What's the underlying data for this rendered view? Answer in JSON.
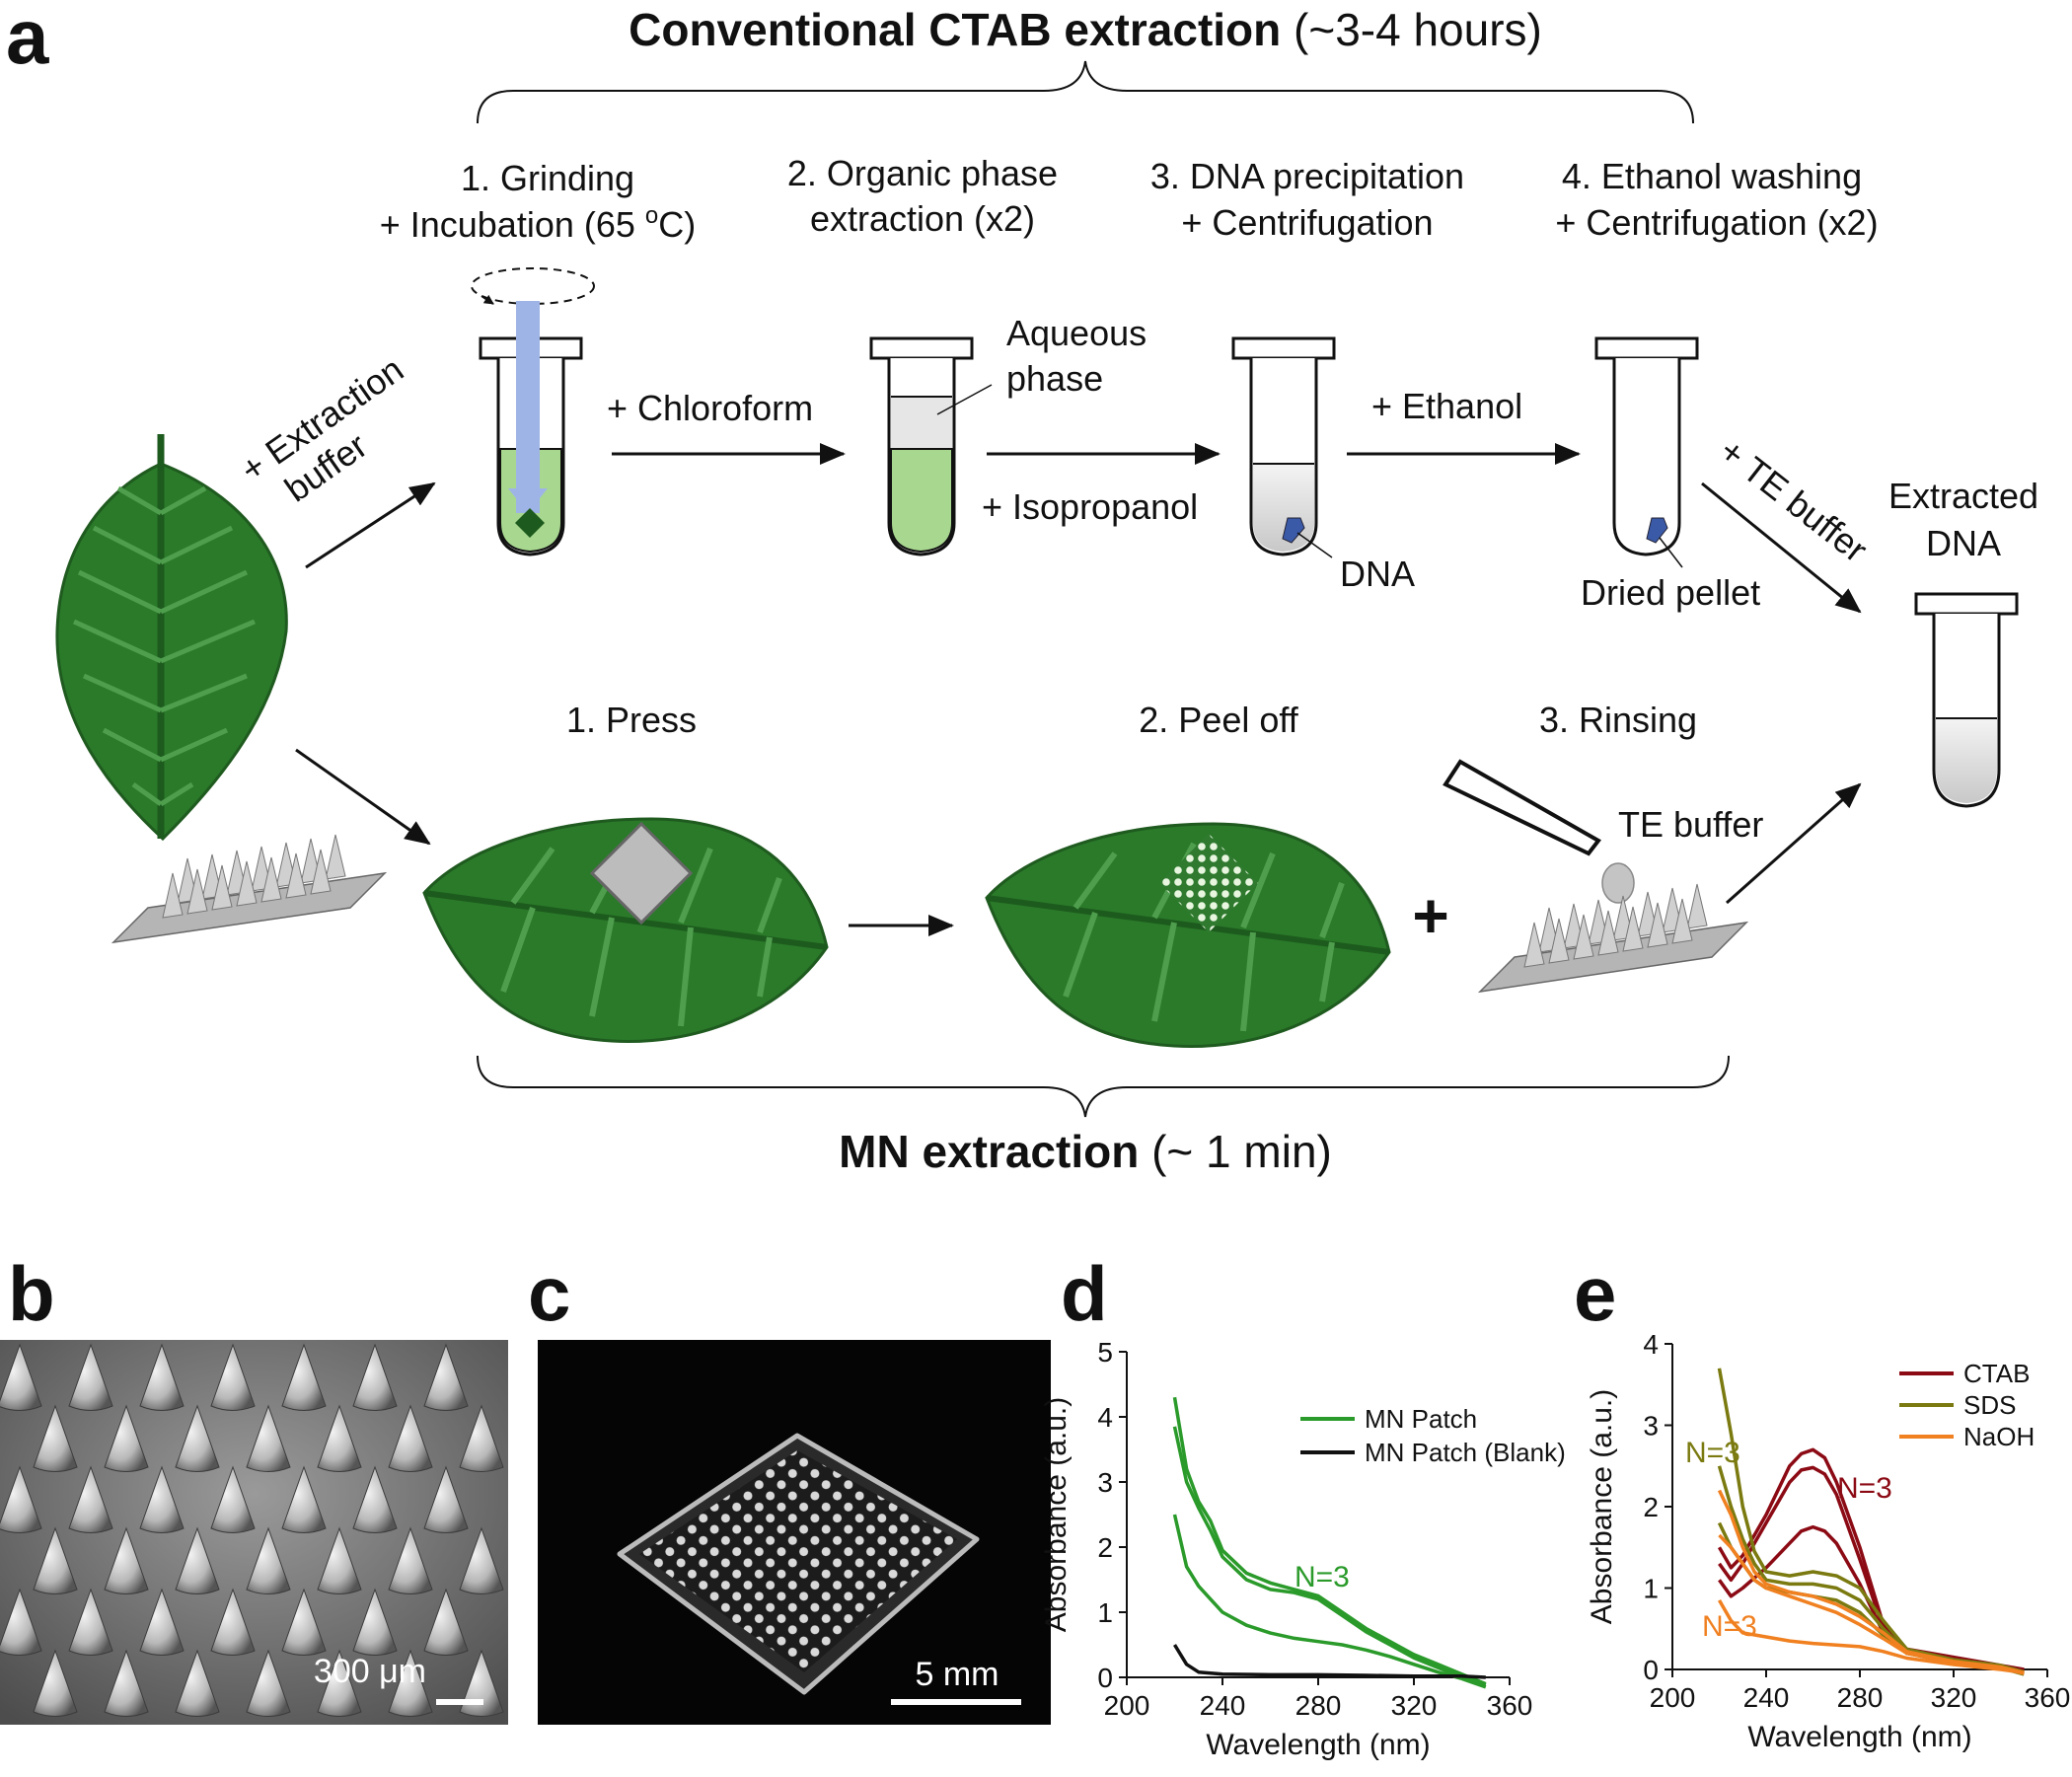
{
  "panels": {
    "a": "a",
    "b": "b",
    "c": "c",
    "d": "d",
    "e": "e"
  },
  "ctab": {
    "title_bold": "Conventional CTAB extraction",
    "title_rest": " (~3-4 hours)",
    "steps": [
      {
        "line1": "1. Grinding",
        "line2": "+ Incubation (65 ",
        "sup": "o",
        "line2_end": "C)"
      },
      {
        "line1": "2. Organic phase",
        "line2": "extraction (x2)"
      },
      {
        "line1": "3. DNA precipitation",
        "line2": "+ Centrifugation"
      },
      {
        "line1": "4. Ethanol washing",
        "line2": "+ Centrifugation (x2)"
      }
    ],
    "extraction_buffer": [
      "+ Extraction",
      "buffer"
    ],
    "chloroform": "+ Chloroform",
    "aqueous_phase": [
      "Aqueous",
      "phase"
    ],
    "isopropanol": "+ Isopropanol",
    "dna": "DNA",
    "ethanol": "+ Ethanol",
    "dried_pellet": "Dried pellet",
    "te_buffer_arrow": "+ TE buffer",
    "extracted_dna": [
      "Extracted",
      "DNA"
    ]
  },
  "mn": {
    "steps": [
      "1. Press",
      "2. Peel off",
      "3. Rinsing"
    ],
    "te_buffer": "TE buffer",
    "plus": "+",
    "title_bold": "MN extraction",
    "title_rest": " (~ 1 min)"
  },
  "panel_b": {
    "scale": "300 μm"
  },
  "panel_c": {
    "scale": "5 mm"
  },
  "chart_data": [
    {
      "type": "line",
      "panel": "d",
      "xlabel": "Wavelength (nm)",
      "ylabel": "Absorbance (a.u.)",
      "xlim": [
        200,
        360
      ],
      "ylim": [
        0,
        5
      ],
      "xticks": [
        200,
        240,
        280,
        320,
        360
      ],
      "yticks": [
        0,
        1,
        2,
        3,
        4,
        5
      ],
      "annotation": "N=3",
      "legend": [
        "MN Patch",
        "MN Patch (Blank)"
      ],
      "legend_position": "top-right",
      "colors": {
        "MN Patch": "#2a9a2a",
        "MN Patch (Blank)": "#111111"
      },
      "series": [
        {
          "name": "MN Patch",
          "x": [
            220,
            225,
            230,
            235,
            240,
            250,
            260,
            270,
            280,
            290,
            300,
            310,
            320,
            330,
            340,
            350
          ],
          "y": [
            4.3,
            3.2,
            2.7,
            2.4,
            1.95,
            1.6,
            1.45,
            1.35,
            1.25,
            1.0,
            0.75,
            0.55,
            0.35,
            0.2,
            0.05,
            -0.1
          ]
        },
        {
          "name": "MN Patch",
          "x": [
            220,
            225,
            230,
            235,
            240,
            250,
            260,
            270,
            280,
            290,
            300,
            310,
            320,
            330,
            340,
            350
          ],
          "y": [
            3.85,
            3.0,
            2.6,
            2.25,
            1.85,
            1.5,
            1.35,
            1.3,
            1.2,
            0.95,
            0.7,
            0.5,
            0.3,
            0.15,
            0.0,
            -0.12
          ]
        },
        {
          "name": "MN Patch",
          "x": [
            220,
            225,
            230,
            235,
            240,
            250,
            260,
            270,
            280,
            290,
            300,
            310,
            320,
            330,
            340,
            350
          ],
          "y": [
            2.5,
            1.7,
            1.4,
            1.2,
            1.0,
            0.8,
            0.68,
            0.6,
            0.55,
            0.5,
            0.42,
            0.32,
            0.2,
            0.08,
            -0.02,
            -0.15
          ]
        },
        {
          "name": "MN Patch (Blank)",
          "x": [
            220,
            225,
            230,
            240,
            260,
            280,
            300,
            320,
            340,
            350
          ],
          "y": [
            0.5,
            0.2,
            0.08,
            0.05,
            0.04,
            0.04,
            0.03,
            0.02,
            0.02,
            0.0
          ]
        }
      ]
    },
    {
      "type": "line",
      "panel": "e",
      "xlabel": "Wavelength (nm)",
      "ylabel": "Absorbance (a.u.)",
      "xlim": [
        200,
        360
      ],
      "ylim": [
        0,
        4
      ],
      "xticks": [
        200,
        240,
        280,
        320,
        360
      ],
      "yticks": [
        0,
        1,
        2,
        3,
        4
      ],
      "annotations": [
        {
          "text": "N=3",
          "series": "SDS"
        },
        {
          "text": "N=3",
          "series": "CTAB"
        },
        {
          "text": "N=3",
          "series": "NaOH"
        }
      ],
      "legend": [
        "CTAB",
        "SDS",
        "NaOH"
      ],
      "legend_position": "top-right",
      "colors": {
        "CTAB": "#8b0a14",
        "SDS": "#7a7a10",
        "NaOH": "#f08020"
      },
      "series": [
        {
          "name": "CTAB",
          "x": [
            220,
            225,
            230,
            240,
            250,
            255,
            260,
            265,
            270,
            280,
            290,
            300,
            320,
            340,
            350
          ],
          "y": [
            1.5,
            1.25,
            1.4,
            1.9,
            2.5,
            2.65,
            2.7,
            2.6,
            2.3,
            1.5,
            0.55,
            0.25,
            0.15,
            0.05,
            0.0
          ]
        },
        {
          "name": "CTAB",
          "x": [
            220,
            225,
            230,
            240,
            250,
            255,
            260,
            265,
            270,
            280,
            290,
            300,
            320,
            340,
            350
          ],
          "y": [
            1.3,
            1.1,
            1.3,
            1.8,
            2.3,
            2.45,
            2.48,
            2.4,
            2.15,
            1.35,
            0.5,
            0.2,
            0.1,
            0.03,
            0.0
          ]
        },
        {
          "name": "CTAB",
          "x": [
            220,
            225,
            230,
            240,
            250,
            255,
            260,
            265,
            270,
            280,
            290,
            300,
            320,
            340,
            350
          ],
          "y": [
            1.1,
            0.9,
            1.0,
            1.25,
            1.55,
            1.7,
            1.75,
            1.7,
            1.55,
            1.05,
            0.45,
            0.2,
            0.1,
            0.02,
            -0.02
          ]
        },
        {
          "name": "SDS",
          "x": [
            220,
            225,
            230,
            235,
            240,
            250,
            260,
            270,
            280,
            290,
            300,
            320,
            340,
            350
          ],
          "y": [
            3.7,
            2.9,
            2.0,
            1.45,
            1.2,
            1.15,
            1.2,
            1.15,
            1.0,
            0.6,
            0.25,
            0.12,
            0.05,
            -0.03
          ]
        },
        {
          "name": "SDS",
          "x": [
            220,
            225,
            230,
            235,
            240,
            250,
            260,
            270,
            280,
            290,
            300,
            320,
            340,
            350
          ],
          "y": [
            2.5,
            2.0,
            1.6,
            1.3,
            1.1,
            1.05,
            1.05,
            1.0,
            0.85,
            0.5,
            0.22,
            0.1,
            0.03,
            -0.05
          ]
        },
        {
          "name": "SDS",
          "x": [
            220,
            225,
            230,
            235,
            240,
            250,
            260,
            270,
            280,
            290,
            300,
            320,
            340,
            350
          ],
          "y": [
            1.8,
            1.5,
            1.3,
            1.1,
            1.0,
            0.95,
            0.9,
            0.85,
            0.7,
            0.42,
            0.2,
            0.08,
            0.02,
            -0.06
          ]
        },
        {
          "name": "NaOH",
          "x": [
            220,
            225,
            230,
            235,
            240,
            250,
            260,
            270,
            280,
            290,
            300,
            320,
            340,
            350
          ],
          "y": [
            2.2,
            1.9,
            1.5,
            1.2,
            1.05,
            0.95,
            0.9,
            0.8,
            0.65,
            0.45,
            0.22,
            0.1,
            0.03,
            -0.04
          ]
        },
        {
          "name": "NaOH",
          "x": [
            220,
            225,
            230,
            235,
            240,
            250,
            260,
            270,
            280,
            290,
            300,
            320,
            340,
            350
          ],
          "y": [
            1.65,
            1.5,
            1.3,
            1.1,
            1.0,
            0.9,
            0.8,
            0.7,
            0.55,
            0.38,
            0.2,
            0.08,
            0.02,
            -0.05
          ]
        },
        {
          "name": "NaOH",
          "x": [
            220,
            225,
            230,
            240,
            250,
            260,
            270,
            280,
            290,
            300,
            320,
            340,
            350
          ],
          "y": [
            0.85,
            0.6,
            0.45,
            0.4,
            0.35,
            0.32,
            0.3,
            0.28,
            0.22,
            0.14,
            0.06,
            0.0,
            -0.04
          ]
        }
      ]
    }
  ]
}
